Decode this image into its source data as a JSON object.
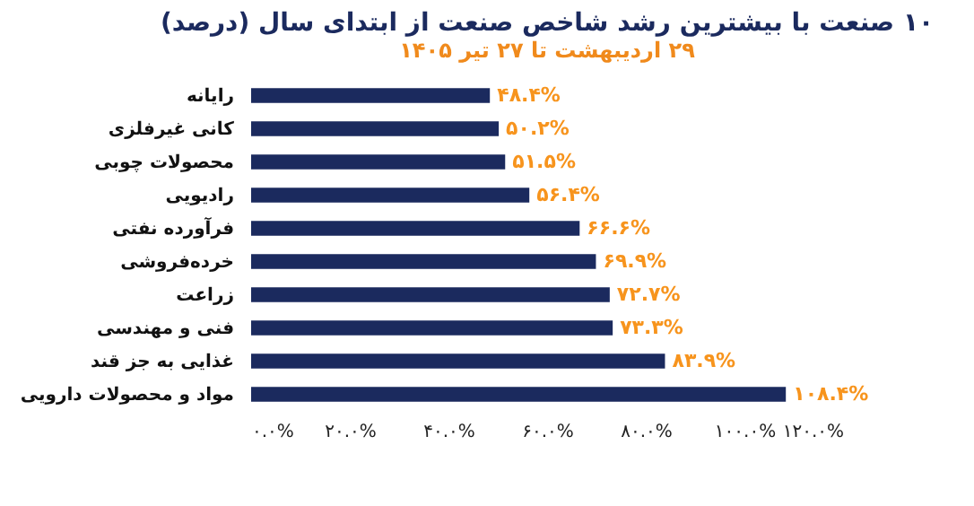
{
  "chart_data": {
    "type": "bar",
    "orientation": "horizontal",
    "title": "۱۰ صنعت با بیشترین رشد شاخص صنعت از ابتدای سال (درصد)",
    "subtitle": "۲۹ اردیبهشت تا ۲۷ تیر ۱۴۰۵",
    "categories": [
      "رایانه",
      "کانی غیرفلزی",
      "محصولات چوبی",
      "رادیویی",
      "فرآورده نفتی",
      "خرده‌فروشی",
      "زراعت",
      "فنی و مهندسی",
      "غذایی به جز قند",
      "مواد و محصولات دارویی"
    ],
    "values": [
      48.4,
      50.2,
      51.5,
      56.4,
      66.6,
      69.9,
      72.7,
      73.3,
      83.9,
      108.4
    ],
    "value_labels": [
      "۴۸.۴%",
      "۵۰.۲%",
      "۵۱.۵%",
      "۵۶.۴%",
      "۶۶.۶%",
      "۶۹.۹%",
      "۷۲.۷%",
      "۷۳.۳%",
      "۸۳.۹%",
      "۱۰۸.۴%"
    ],
    "color": "#1b2a5e",
    "xlim": [
      0,
      120
    ],
    "xticks": [
      {
        "value": 0,
        "label": "۰.۰%"
      },
      {
        "value": 20,
        "label": "۲۰.۰%"
      },
      {
        "value": 40,
        "label": "۴۰.۰%"
      },
      {
        "value": 60,
        "label": "۶۰.۰%"
      },
      {
        "value": 80,
        "label": "۸۰.۰%"
      },
      {
        "value": 100,
        "label": "۱۰۰.۰%"
      },
      {
        "value": 120,
        "label": "۱۲۰.۰%"
      }
    ],
    "grid": false
  }
}
